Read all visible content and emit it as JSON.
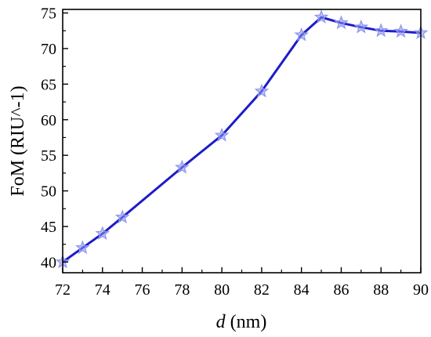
{
  "chart_data": {
    "type": "line",
    "title": "",
    "xlabel_var": "d",
    "xlabel_unit": " (nm)",
    "ylabel": "FoM (RIU^-1)",
    "xlim": [
      72,
      90
    ],
    "ylim": [
      38.5,
      75.5
    ],
    "xticks": [
      72,
      74,
      76,
      78,
      80,
      82,
      84,
      86,
      88,
      90
    ],
    "yticks": [
      40,
      45,
      50,
      55,
      60,
      65,
      70,
      75
    ],
    "grid": false,
    "legend": "none",
    "series": [
      {
        "color": "#1c1cc8",
        "marker": "star",
        "marker_color": "#8f96ee",
        "x": [
          72,
          73,
          74,
          75,
          78,
          80,
          82,
          84,
          85,
          86,
          87,
          88,
          89,
          90
        ],
        "y": [
          40.0,
          42.0,
          44.0,
          46.3,
          53.3,
          57.8,
          64.0,
          71.9,
          74.4,
          73.6,
          73.0,
          72.5,
          72.4,
          72.2
        ]
      }
    ]
  }
}
